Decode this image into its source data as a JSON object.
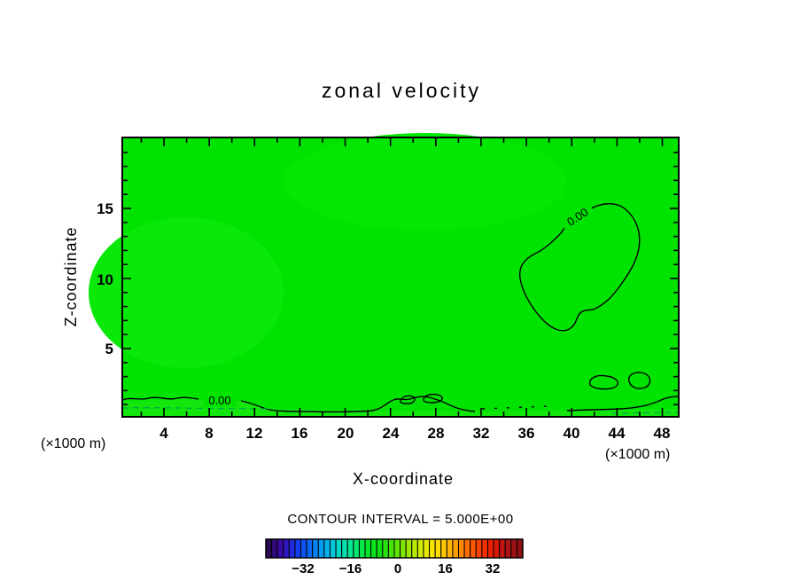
{
  "title": "zonal velocity",
  "axes": {
    "x_label": "X-coordinate",
    "y_label": "Z-coordinate",
    "x_unit": "(×1000 m)",
    "y_unit": "(×1000 m)",
    "x_ticks": [
      4,
      8,
      12,
      16,
      20,
      24,
      28,
      32,
      36,
      40,
      44,
      48
    ],
    "y_ticks": [
      15,
      10,
      5
    ]
  },
  "contour": {
    "interval_label": "CONTOUR INTERVAL = 5.000E+00",
    "zero_label": "0.00"
  },
  "colors": {
    "field_green": "#00e301",
    "surface_strip_green": "#12e60c",
    "dashed_contour_green": "#00a34f"
  },
  "colorbar": {
    "tick_labels": [
      "−32",
      "−16",
      "0",
      "16",
      "32"
    ],
    "colors": [
      "#2a0a50",
      "#3b0bb4",
      "#1436f0",
      "#0a6cf5",
      "#00a8f0",
      "#00d8c8",
      "#00e88a",
      "#00e62a",
      "#10e010",
      "#52e400",
      "#9ce800",
      "#d8ec00",
      "#ffe400",
      "#ffb400",
      "#ff7c00",
      "#ff4400",
      "#e81c00",
      "#b41414",
      "#8c1010"
    ]
  },
  "chart_data": {
    "type": "heatmap",
    "title": "zonal velocity",
    "xlabel": "X-coordinate (×1000 m)",
    "ylabel": "Z-coordinate (×1000 m)",
    "xlim": [
      0,
      49.5
    ],
    "ylim": [
      0,
      20
    ],
    "x_tick_values": [
      4,
      8,
      12,
      16,
      20,
      24,
      28,
      32,
      36,
      40,
      44,
      48
    ],
    "y_tick_values": [
      5,
      10,
      15
    ],
    "grid": false,
    "contour_interval": 5.0,
    "colorbar_range": [
      -45,
      45
    ],
    "colorbar_tick_values": [
      -32,
      -16,
      0,
      16,
      32
    ],
    "field_summary": "Entire domain lies in the single contour band around 0 (uniform green fill); only the 0.00 contour appears.",
    "zero_contours": [
      {
        "region": "upper-right closed loop",
        "x_range_km": [
          35.5,
          46.0
        ],
        "z_range_km": [
          6.0,
          15.5
        ],
        "label": "0.00"
      },
      {
        "region": "near-surface wavy contour from left edge",
        "x_range_km": [
          0.3,
          13.0
        ],
        "z_km": 1.2,
        "label": "0.00"
      },
      {
        "region": "near-surface bumps with small closed loops",
        "x_range_km": [
          23.0,
          31.0
        ],
        "z_km": 1.5
      },
      {
        "region": "dotted near-surface segments",
        "x_range_km": [
          31.5,
          38.0
        ],
        "z_km": 1.0
      },
      {
        "region": "two small closed loops",
        "x_range_km": [
          41.5,
          47.0
        ],
        "z_km": 2.2
      },
      {
        "region": "bottom-right corner contour",
        "x_range_km": [
          47.0,
          49.5
        ],
        "z_km": 1.5
      }
    ]
  }
}
